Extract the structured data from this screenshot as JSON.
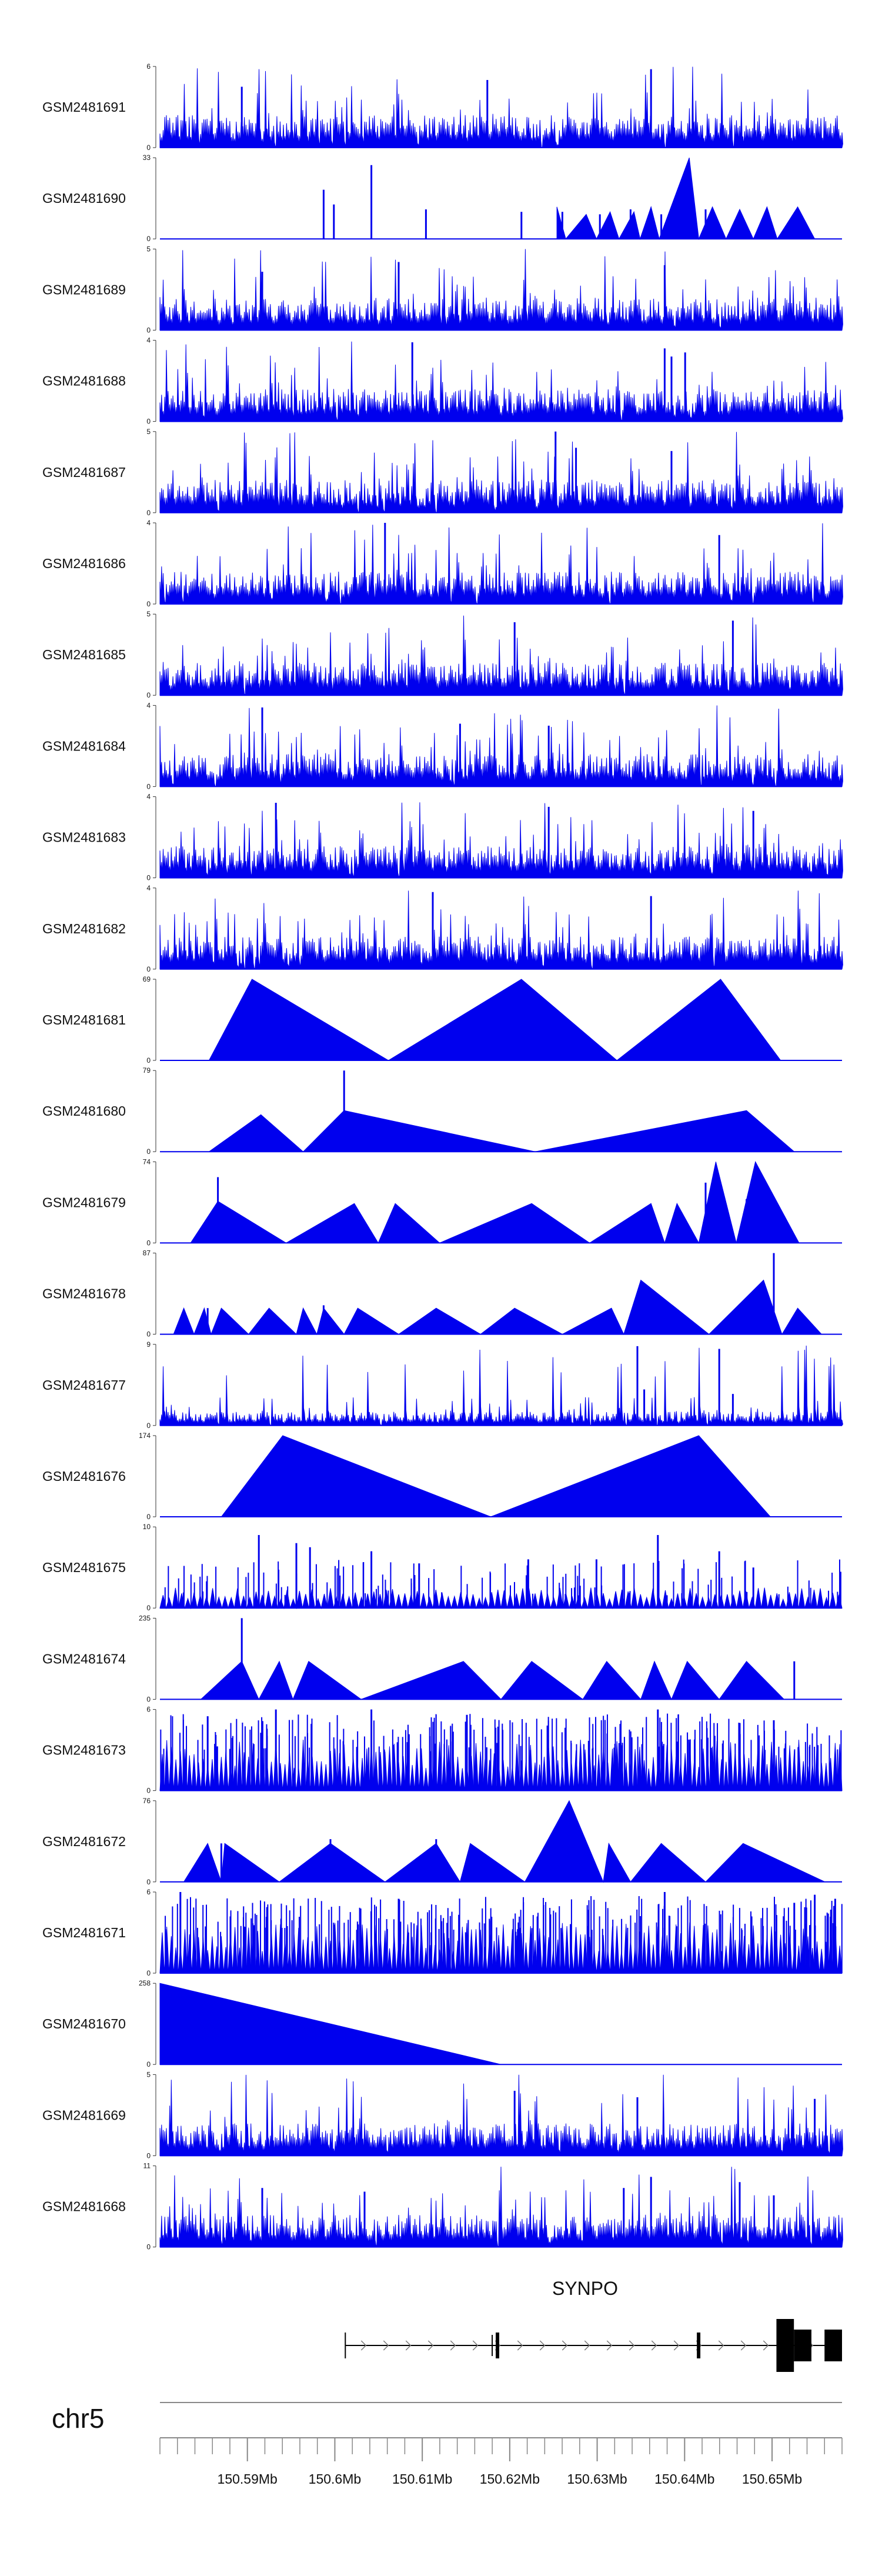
{
  "colors": {
    "signal": "#0000ee",
    "axis": "#333333",
    "gene": "#000000",
    "genome_axis": "#888888"
  },
  "chart_data": {
    "type": "area",
    "title": "",
    "xlabel": "",
    "ylabel": "",
    "xlim": [
      150.58,
      150.658
    ],
    "xlim_unit": "Mb",
    "chromosome": "chr5",
    "gene": {
      "name": "SYNPO",
      "strand": "+",
      "transcript_start_mb": 150.6012,
      "transcript_end_mb": 150.658,
      "exons_mb": [
        [
          150.6184,
          150.6188
        ],
        [
          150.6414,
          150.6418
        ],
        [
          150.6505,
          150.6525
        ],
        [
          150.6525,
          150.6545
        ],
        [
          150.656,
          150.658
        ]
      ]
    },
    "x_ticks": [
      "150.59Mb",
      "150.6Mb",
      "150.61Mb",
      "150.62Mb",
      "150.63Mb",
      "150.64Mb",
      "150.65Mb"
    ],
    "x_tick_values": [
      150.59,
      150.6,
      150.61,
      150.62,
      150.63,
      150.64,
      150.65
    ],
    "minor_tick_step_mb": 0.002,
    "tracks": [
      {
        "name": "GSM2481691",
        "ymax": 6,
        "ymax_label": "6",
        "style": "dense",
        "seed": 11,
        "hot": [
          [
            0.12,
            4.5
          ],
          [
            0.48,
            5.0
          ],
          [
            0.72,
            5.8
          ]
        ]
      },
      {
        "name": "GSM2481690",
        "ymax": 33,
        "ymax_label": "33",
        "style": "tri",
        "seed": 12,
        "peaks": [
          [
            0.582,
            0,
            13
          ],
          [
            0.595,
            0.612,
            0
          ],
          [
            0.625,
            0.632,
            10
          ],
          [
            0.64,
            0.648,
            0
          ],
          [
            0.66,
            0.667,
            11
          ],
          [
            0.673,
            0.681,
            0
          ],
          [
            0.695,
            0.7,
            11
          ],
          [
            0.704,
            0.712,
            0
          ],
          [
            0.72,
            0.728,
            13
          ],
          [
            0.732,
            0.739,
            0
          ],
          [
            0.776,
            0.785,
            33
          ],
          [
            0.79,
            0.797,
            0
          ],
          [
            0.81,
            0.82,
            13
          ],
          [
            0.83,
            0.838,
            0
          ],
          [
            0.85,
            0.86,
            12
          ],
          [
            0.87,
            0.878,
            0
          ],
          [
            0.89,
            0.9,
            13
          ],
          [
            0.905,
            0.915,
            0
          ],
          [
            0.935,
            0.945,
            13
          ],
          [
            0.96,
            0.97,
            0
          ]
        ],
        "spikes": [
          [
            0.24,
            20
          ],
          [
            0.255,
            14
          ],
          [
            0.31,
            30
          ],
          [
            0.39,
            12
          ],
          [
            0.53,
            11
          ],
          [
            0.59,
            11
          ],
          [
            0.645,
            10
          ],
          [
            0.69,
            12
          ],
          [
            0.735,
            10
          ],
          [
            0.8,
            12
          ]
        ]
      },
      {
        "name": "GSM2481689",
        "ymax": 5,
        "ymax_label": "5",
        "style": "dense",
        "seed": 13,
        "hot": [
          [
            0.15,
            3.6
          ],
          [
            0.35,
            4.2
          ],
          [
            0.74,
            4.0
          ]
        ]
      },
      {
        "name": "GSM2481688",
        "ymax": 4,
        "ymax_label": "4",
        "style": "dense",
        "seed": 14,
        "hot": [
          [
            0.37,
            3.9
          ],
          [
            0.74,
            3.6
          ],
          [
            0.75,
            3.2
          ],
          [
            0.77,
            3.4
          ]
        ]
      },
      {
        "name": "GSM2481687",
        "ymax": 5,
        "ymax_label": "5",
        "style": "dense",
        "seed": 15,
        "hot": [
          [
            0.58,
            5.0
          ],
          [
            0.61,
            4.0
          ],
          [
            0.75,
            3.8
          ]
        ]
      },
      {
        "name": "GSM2481686",
        "ymax": 4,
        "ymax_label": "4",
        "style": "dense",
        "seed": 16,
        "hot": [
          [
            0.33,
            4.0
          ],
          [
            0.82,
            3.4
          ]
        ]
      },
      {
        "name": "GSM2481685",
        "ymax": 5,
        "ymax_label": "5",
        "style": "dense",
        "seed": 17,
        "hot": [
          [
            0.52,
            4.5
          ],
          [
            0.84,
            4.6
          ]
        ]
      },
      {
        "name": "GSM2481684",
        "ymax": 4,
        "ymax_label": "4",
        "style": "dense",
        "seed": 18,
        "hot": [
          [
            0.15,
            3.9
          ],
          [
            0.44,
            3.1
          ],
          [
            0.57,
            3.0
          ]
        ]
      },
      {
        "name": "GSM2481683",
        "ymax": 4,
        "ymax_label": "4",
        "style": "dense",
        "seed": 19,
        "hot": [
          [
            0.17,
            3.7
          ],
          [
            0.57,
            3.5
          ],
          [
            0.87,
            3.3
          ]
        ]
      },
      {
        "name": "GSM2481682",
        "ymax": 4,
        "ymax_label": "4",
        "style": "dense",
        "seed": 20,
        "hot": [
          [
            0.4,
            3.8
          ],
          [
            0.72,
            3.6
          ]
        ]
      },
      {
        "name": "GSM2481681",
        "ymax": 69,
        "ymax_label": "69",
        "style": "tri",
        "seed": 21,
        "peaks": [
          [
            0.072,
            0,
            0
          ],
          [
            0.135,
            0,
            69
          ],
          [
            0.335,
            0,
            0
          ],
          [
            0.53,
            0,
            69
          ],
          [
            0.67,
            0,
            0
          ],
          [
            0.822,
            0,
            69
          ],
          [
            0.91,
            0,
            0
          ]
        ],
        "spikes": [
          [
            0.822,
            55
          ]
        ]
      },
      {
        "name": "GSM2481680",
        "ymax": 79,
        "ymax_label": "79",
        "style": "tri",
        "seed": 22,
        "peaks": [
          [
            0.072,
            0,
            0
          ],
          [
            0.148,
            0,
            36
          ],
          [
            0.21,
            0,
            0
          ],
          [
            0.27,
            0,
            40
          ],
          [
            0.55,
            0,
            0
          ],
          [
            0.86,
            0,
            40
          ],
          [
            0.93,
            0,
            0
          ]
        ],
        "spikes": [
          [
            0.27,
            79
          ],
          [
            0.148,
            10
          ],
          [
            0.858,
            8
          ]
        ]
      },
      {
        "name": "GSM2481679",
        "ymax": 74,
        "ymax_label": "74",
        "style": "tri",
        "seed": 23,
        "peaks": [
          [
            0.045,
            0,
            0
          ],
          [
            0.085,
            0,
            38
          ],
          [
            0.185,
            0,
            0
          ],
          [
            0.285,
            0,
            36
          ],
          [
            0.32,
            0,
            0
          ],
          [
            0.345,
            0,
            36
          ],
          [
            0.41,
            0,
            0
          ],
          [
            0.545,
            0,
            36
          ],
          [
            0.63,
            0,
            0
          ],
          [
            0.72,
            0,
            36
          ],
          [
            0.74,
            0,
            0
          ],
          [
            0.758,
            0,
            36
          ],
          [
            0.79,
            0,
            0
          ],
          [
            0.815,
            0,
            74
          ],
          [
            0.845,
            0,
            0
          ],
          [
            0.873,
            0,
            74
          ],
          [
            0.937,
            0,
            0
          ]
        ],
        "spikes": [
          [
            0.085,
            60
          ],
          [
            0.8,
            55
          ],
          [
            0.86,
            40
          ]
        ]
      },
      {
        "name": "GSM2481678",
        "ymax": 87,
        "ymax_label": "87",
        "style": "tri",
        "seed": 24,
        "peaks": [
          [
            0.02,
            0,
            0
          ],
          [
            0.035,
            0,
            28
          ],
          [
            0.05,
            0,
            0
          ],
          [
            0.065,
            0,
            28
          ],
          [
            0.075,
            0,
            0
          ],
          [
            0.09,
            0,
            28
          ],
          [
            0.13,
            0,
            0
          ],
          [
            0.16,
            0,
            28
          ],
          [
            0.2,
            0,
            0
          ],
          [
            0.21,
            0,
            28
          ],
          [
            0.23,
            0,
            0
          ],
          [
            0.24,
            0,
            28
          ],
          [
            0.27,
            0,
            0
          ],
          [
            0.29,
            0,
            28
          ],
          [
            0.35,
            0,
            0
          ],
          [
            0.405,
            0,
            28
          ],
          [
            0.47,
            0,
            0
          ],
          [
            0.52,
            0,
            28
          ],
          [
            0.59,
            0,
            0
          ],
          [
            0.662,
            0,
            28
          ],
          [
            0.68,
            0,
            0
          ],
          [
            0.705,
            0,
            58
          ],
          [
            0.805,
            0,
            0
          ],
          [
            0.885,
            0,
            58
          ],
          [
            0.912,
            0,
            0
          ],
          [
            0.935,
            0,
            28
          ],
          [
            0.97,
            0,
            0
          ]
        ],
        "spikes": [
          [
            0.07,
            28
          ],
          [
            0.24,
            31
          ],
          [
            0.9,
            87
          ]
        ]
      },
      {
        "name": "GSM2481677",
        "ymax": 9,
        "ymax_label": "9",
        "style": "low",
        "seed": 25,
        "hot": [
          [
            0.7,
            8.8
          ],
          [
            0.82,
            8.5
          ],
          [
            0.71,
            4.0
          ],
          [
            0.84,
            3.5
          ]
        ]
      },
      {
        "name": "GSM2481676",
        "ymax": 174,
        "ymax_label": "174",
        "style": "tri",
        "seed": 26,
        "peaks": [
          [
            0.09,
            0,
            0
          ],
          [
            0.18,
            0,
            174
          ],
          [
            0.485,
            0,
            0
          ],
          [
            0.79,
            0,
            174
          ],
          [
            0.895,
            0,
            0
          ]
        ],
        "spikes": []
      },
      {
        "name": "GSM2481675",
        "ymax": 10,
        "ymax_label": "10",
        "style": "tri_noise",
        "seed": 27,
        "spikes": [
          [
            0.145,
            9.0
          ],
          [
            0.2,
            8.0
          ],
          [
            0.22,
            7.5
          ],
          [
            0.31,
            7.0
          ],
          [
            0.38,
            5.5
          ],
          [
            0.54,
            6.0
          ],
          [
            0.64,
            6.0
          ],
          [
            0.73,
            9.0
          ],
          [
            0.82,
            7.0
          ],
          [
            0.87,
            5.0
          ]
        ]
      },
      {
        "name": "GSM2481674",
        "ymax": 235,
        "ymax_label": "235",
        "style": "tri",
        "seed": 28,
        "peaks": [
          [
            0.06,
            0,
            0
          ],
          [
            0.12,
            0,
            110
          ],
          [
            0.145,
            0,
            0
          ],
          [
            0.175,
            0,
            110
          ],
          [
            0.195,
            0,
            0
          ],
          [
            0.218,
            0,
            110
          ],
          [
            0.295,
            0,
            0
          ],
          [
            0.445,
            0,
            110
          ],
          [
            0.5,
            0,
            0
          ],
          [
            0.545,
            0,
            110
          ],
          [
            0.62,
            0,
            0
          ],
          [
            0.655,
            0,
            110
          ],
          [
            0.705,
            0,
            0
          ],
          [
            0.725,
            0,
            110
          ],
          [
            0.75,
            0,
            0
          ],
          [
            0.773,
            0,
            110
          ],
          [
            0.82,
            0,
            0
          ],
          [
            0.86,
            0,
            110
          ],
          [
            0.915,
            0,
            0
          ],
          [
            0.96,
            0,
            0
          ]
        ],
        "spikes": [
          [
            0.12,
            235
          ],
          [
            0.93,
            110
          ]
        ]
      },
      {
        "name": "GSM2481673",
        "ymax": 6,
        "ymax_label": "6",
        "style": "tri_dense",
        "seed": 29,
        "spikes": [
          [
            0.07,
            5.5
          ],
          [
            0.17,
            6.0
          ],
          [
            0.31,
            6.0
          ],
          [
            0.45,
            5.6
          ],
          [
            0.73,
            6.0
          ],
          [
            0.85,
            5.0
          ],
          [
            0.9,
            5.2
          ]
        ]
      },
      {
        "name": "GSM2481672",
        "ymax": 76,
        "ymax_label": "76",
        "style": "tri",
        "seed": 30,
        "peaks": [
          [
            0.035,
            0,
            0
          ],
          [
            0.07,
            0,
            36
          ],
          [
            0.09,
            0,
            0
          ],
          [
            0.095,
            0,
            36
          ],
          [
            0.175,
            0,
            0
          ],
          [
            0.25,
            0,
            36
          ],
          [
            0.33,
            0,
            0
          ],
          [
            0.405,
            0,
            36
          ],
          [
            0.44,
            0,
            0
          ],
          [
            0.455,
            0,
            36
          ],
          [
            0.535,
            0,
            0
          ],
          [
            0.6,
            0,
            76
          ],
          [
            0.65,
            0,
            0
          ],
          [
            0.658,
            0,
            36
          ],
          [
            0.69,
            0,
            0
          ],
          [
            0.735,
            0,
            36
          ],
          [
            0.8,
            0,
            0
          ],
          [
            0.855,
            0,
            36
          ],
          [
            0.975,
            0,
            0
          ]
        ],
        "spikes": [
          [
            0.09,
            36
          ],
          [
            0.25,
            40
          ],
          [
            0.405,
            40
          ]
        ]
      },
      {
        "name": "GSM2481671",
        "ymax": 6,
        "ymax_label": "6",
        "style": "tri_dense",
        "seed": 31,
        "spikes": [
          [
            0.03,
            6.0
          ],
          [
            0.35,
            5.5
          ],
          [
            0.74,
            6.0
          ],
          [
            0.96,
            5.8
          ],
          [
            0.93,
            5.2
          ],
          [
            0.99,
            5.5
          ]
        ]
      },
      {
        "name": "GSM2481670",
        "ymax": 258,
        "ymax_label": "258",
        "style": "tri",
        "seed": 32,
        "peaks": [
          [
            0.0,
            0,
            258
          ],
          [
            0.5,
            0,
            0
          ]
        ],
        "spikes": []
      },
      {
        "name": "GSM2481669",
        "ymax": 5,
        "ymax_label": "5",
        "style": "dense",
        "seed": 33,
        "hot": [
          [
            0.52,
            4.0
          ],
          [
            0.7,
            3.6
          ],
          [
            0.96,
            3.5
          ]
        ]
      },
      {
        "name": "GSM2481668",
        "ymax": 11,
        "ymax_label": "11",
        "style": "dense",
        "seed": 34,
        "hot": [
          [
            0.15,
            8.0
          ],
          [
            0.3,
            7.5
          ],
          [
            0.68,
            8.0
          ],
          [
            0.72,
            9.5
          ],
          [
            0.85,
            8.8
          ],
          [
            0.9,
            7.0
          ]
        ]
      }
    ]
  }
}
